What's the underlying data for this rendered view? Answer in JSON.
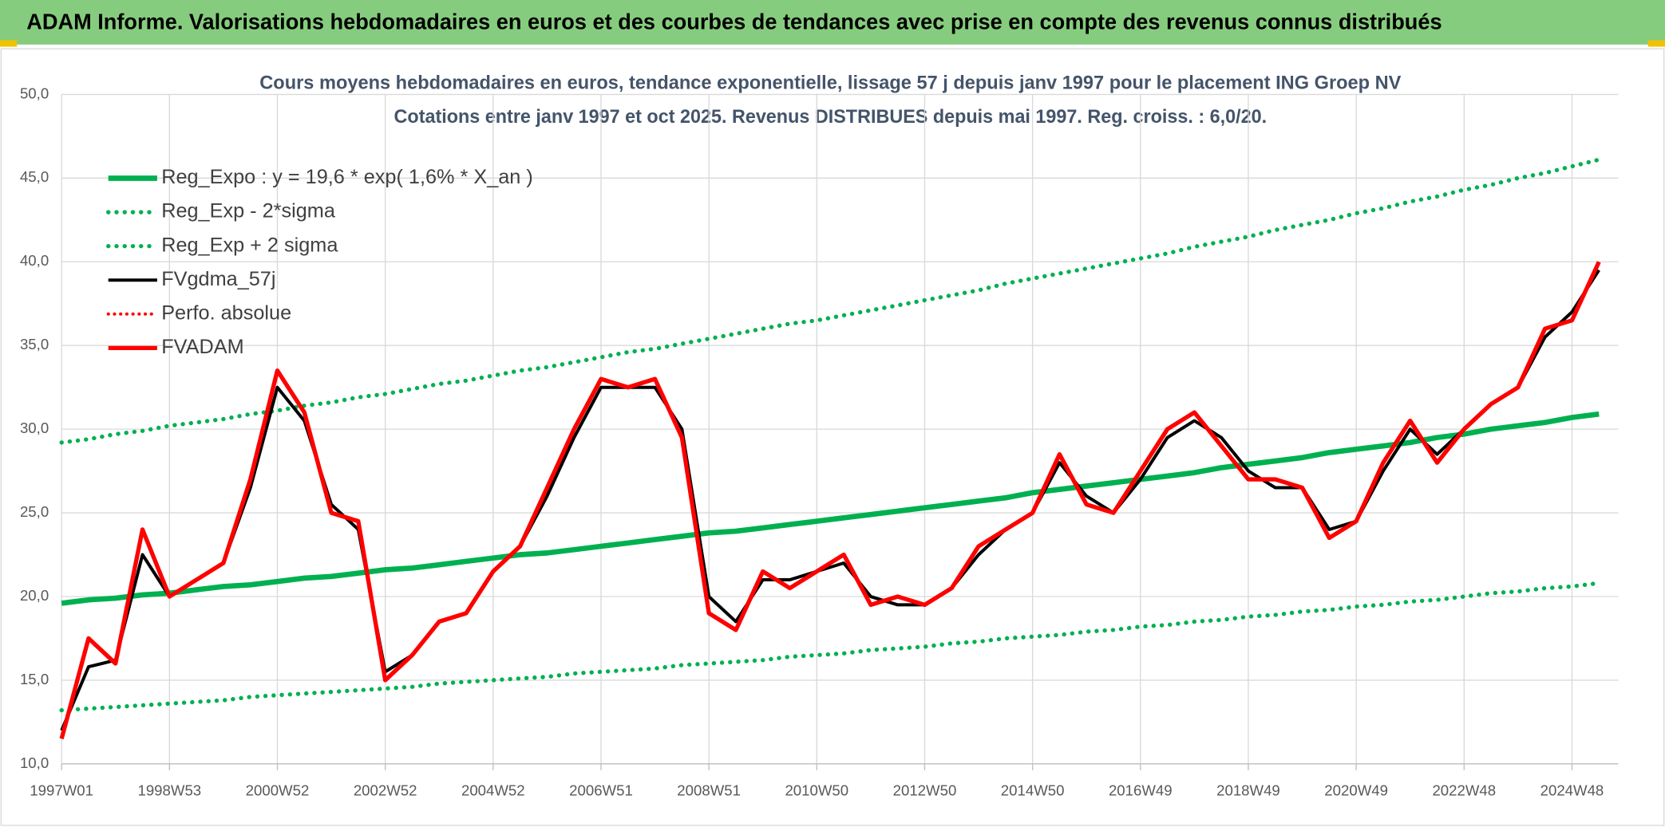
{
  "header": {
    "title": "ADAM Informe. Valorisations hebdomadaires en euros et des courbes de tendances avec prise en compte des revenus connus distribués"
  },
  "chart_data": {
    "type": "line",
    "title": "Cours moyens hebdomadaires en euros, tendance exponentielle, lissage 57 j depuis janv 1997 pour le placement ING Groep NV",
    "subtitle": "Cotations entre janv 1997 et oct 2025. Revenus DISTRIBUES depuis mai 1997. Reg. croiss. : 6,0/20.",
    "categories": [
      "1997W01",
      null,
      null,
      null,
      "1998W53",
      null,
      null,
      null,
      "2000W52",
      null,
      null,
      null,
      "2002W52",
      null,
      null,
      null,
      "2004W52",
      null,
      null,
      null,
      "2006W51",
      null,
      null,
      null,
      "2008W51",
      null,
      null,
      null,
      "2010W50",
      null,
      null,
      null,
      "2012W50",
      null,
      null,
      null,
      "2014W50",
      null,
      null,
      null,
      "2016W49",
      null,
      null,
      null,
      "2018W49",
      null,
      null,
      null,
      "2020W49",
      null,
      null,
      null,
      "2022W48",
      null,
      null,
      null,
      "2024W48",
      null
    ],
    "ylim": [
      10,
      50
    ],
    "yticks": [
      {
        "value": 10,
        "label": "10,0"
      },
      {
        "value": 15,
        "label": "15,0"
      },
      {
        "value": 20,
        "label": "20,0"
      },
      {
        "value": 25,
        "label": "25,0"
      },
      {
        "value": 30,
        "label": "30,0"
      },
      {
        "value": 35,
        "label": "35,0"
      },
      {
        "value": 40,
        "label": "40,0"
      },
      {
        "value": 45,
        "label": "45,0"
      },
      {
        "value": 50,
        "label": "50,0"
      }
    ],
    "grid": true,
    "legend": "upper left",
    "series": [
      {
        "name": "Reg_Expo : y = 19,6 * exp( 1,6% *  X_an )",
        "color": "#00b050",
        "style": "solid",
        "line_width": 5,
        "values": [
          19.6,
          19.8,
          19.9,
          20.1,
          20.2,
          20.4,
          20.6,
          20.7,
          20.9,
          21.1,
          21.2,
          21.4,
          21.6,
          21.7,
          21.9,
          22.1,
          22.3,
          22.5,
          22.6,
          22.8,
          23.0,
          23.2,
          23.4,
          23.6,
          23.8,
          23.9,
          24.1,
          24.3,
          24.5,
          24.7,
          24.9,
          25.1,
          25.3,
          25.5,
          25.7,
          25.9,
          26.2,
          26.4,
          26.6,
          26.8,
          27.0,
          27.2,
          27.4,
          27.7,
          27.9,
          28.1,
          28.3,
          28.6,
          28.8,
          29.0,
          29.2,
          29.5,
          29.7,
          30.0,
          30.2,
          30.4,
          30.7,
          30.9
        ]
      },
      {
        "name": "Reg_Exp - 2*sigma",
        "color": "#00b050",
        "style": "dotted",
        "line_width": 4,
        "values": [
          13.2,
          13.3,
          13.4,
          13.5,
          13.6,
          13.7,
          13.8,
          14.0,
          14.1,
          14.2,
          14.3,
          14.4,
          14.5,
          14.6,
          14.8,
          14.9,
          15.0,
          15.1,
          15.2,
          15.4,
          15.5,
          15.6,
          15.7,
          15.9,
          16.0,
          16.1,
          16.2,
          16.4,
          16.5,
          16.6,
          16.8,
          16.9,
          17.0,
          17.2,
          17.3,
          17.5,
          17.6,
          17.7,
          17.9,
          18.0,
          18.2,
          18.3,
          18.5,
          18.6,
          18.8,
          18.9,
          19.1,
          19.2,
          19.4,
          19.5,
          19.7,
          19.8,
          20.0,
          20.2,
          20.3,
          20.5,
          20.6,
          20.8
        ]
      },
      {
        "name": "Reg_Exp + 2 sigma",
        "color": "#00b050",
        "style": "dotted",
        "line_width": 4,
        "values": [
          29.2,
          29.4,
          29.7,
          29.9,
          30.2,
          30.4,
          30.6,
          30.9,
          31.1,
          31.4,
          31.6,
          31.9,
          32.1,
          32.4,
          32.7,
          32.9,
          33.2,
          33.5,
          33.7,
          34.0,
          34.3,
          34.6,
          34.8,
          35.1,
          35.4,
          35.7,
          36.0,
          36.3,
          36.5,
          36.8,
          37.1,
          37.4,
          37.7,
          38.0,
          38.3,
          38.7,
          39.0,
          39.3,
          39.6,
          39.9,
          40.2,
          40.5,
          40.9,
          41.2,
          41.5,
          41.9,
          42.2,
          42.5,
          42.9,
          43.2,
          43.6,
          43.9,
          44.3,
          44.6,
          45.0,
          45.3,
          45.7,
          46.1
        ]
      },
      {
        "name": "FVgdma_57j",
        "color": "#000000",
        "style": "solid",
        "line_width": 3,
        "values": [
          12,
          15.8,
          16.2,
          22.5,
          20,
          21,
          22,
          26.5,
          32.5,
          30.5,
          25.5,
          24,
          15.5,
          16.5,
          18.5,
          19,
          21.5,
          23,
          26,
          29.5,
          32.5,
          32.5,
          32.5,
          30,
          20,
          18.5,
          21,
          21,
          21.5,
          22,
          20,
          19.5,
          19.5,
          20.5,
          22.5,
          24,
          25,
          28,
          26,
          25,
          27,
          29.5,
          30.5,
          29.5,
          27.5,
          26.5,
          26.5,
          24,
          24.5,
          27.5,
          30,
          28.5,
          30,
          31.5,
          32.5,
          35.5,
          37,
          39.5
        ]
      },
      {
        "name": "Perfo. absolue",
        "color": "#ff0000",
        "style": "dotted",
        "line_width": 3
      },
      {
        "name": "FVADAM",
        "color": "#ff0000",
        "style": "solid",
        "line_width": 4,
        "values": [
          11.5,
          17.5,
          16,
          24,
          20,
          21,
          22,
          27,
          33.5,
          31,
          25,
          24.5,
          15,
          16.5,
          18.5,
          19,
          21.5,
          23,
          26.5,
          30,
          33,
          32.5,
          33,
          29.5,
          19,
          18,
          21.5,
          20.5,
          21.5,
          22.5,
          19.5,
          20,
          19.5,
          20.5,
          23,
          24,
          25,
          28.5,
          25.5,
          25,
          27.5,
          30,
          31,
          29,
          27,
          27,
          26.5,
          23.5,
          24.5,
          28,
          30.5,
          28,
          30,
          31.5,
          32.5,
          36,
          36.5,
          40
        ]
      }
    ]
  }
}
